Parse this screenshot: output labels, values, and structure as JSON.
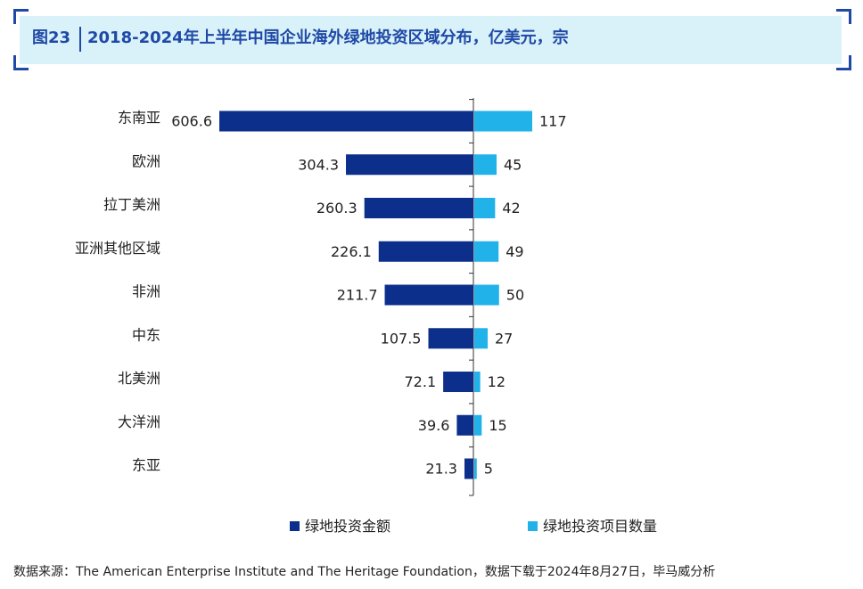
{
  "header": {
    "figure_label": "图23",
    "title": "2018-2024年上半年中国企业海外绿地投资区域分布，亿美元，宗"
  },
  "colors": {
    "title_blue": "#1f49a6",
    "amount_bar": "#0b2f8a",
    "count_bar": "#22b2ea"
  },
  "chart_data": {
    "type": "bar",
    "orientation": "horizontal-diverging",
    "categories": [
      "东南亚",
      "欧洲",
      "拉丁美洲",
      "亚洲其他区域",
      "非洲",
      "中东",
      "北美洲",
      "大洋洲",
      "东亚"
    ],
    "series": [
      {
        "name": "绿地投资金额",
        "unit": "亿美元",
        "direction": "left",
        "values": [
          606.6,
          304.3,
          260.3,
          226.1,
          211.7,
          107.5,
          72.1,
          39.6,
          21.3
        ],
        "labels": [
          "606.6",
          "304.3",
          "260.3",
          "226.1",
          "211.7",
          "107.5",
          "72.1",
          "39.6",
          "21.3"
        ]
      },
      {
        "name": "绿地投资项目数量",
        "unit": "宗",
        "direction": "right",
        "values": [
          117,
          45,
          42,
          49,
          50,
          27,
          12,
          15,
          5
        ],
        "labels": [
          "117",
          "45",
          "42",
          "49",
          "50",
          "27",
          "12",
          "15",
          "5"
        ]
      }
    ],
    "legend_position": "bottom",
    "grid": false
  },
  "source": {
    "text": "数据来源：The American Enterprise Institute and The Heritage Foundation，数据下载于2024年8月27日，毕马威分析"
  }
}
